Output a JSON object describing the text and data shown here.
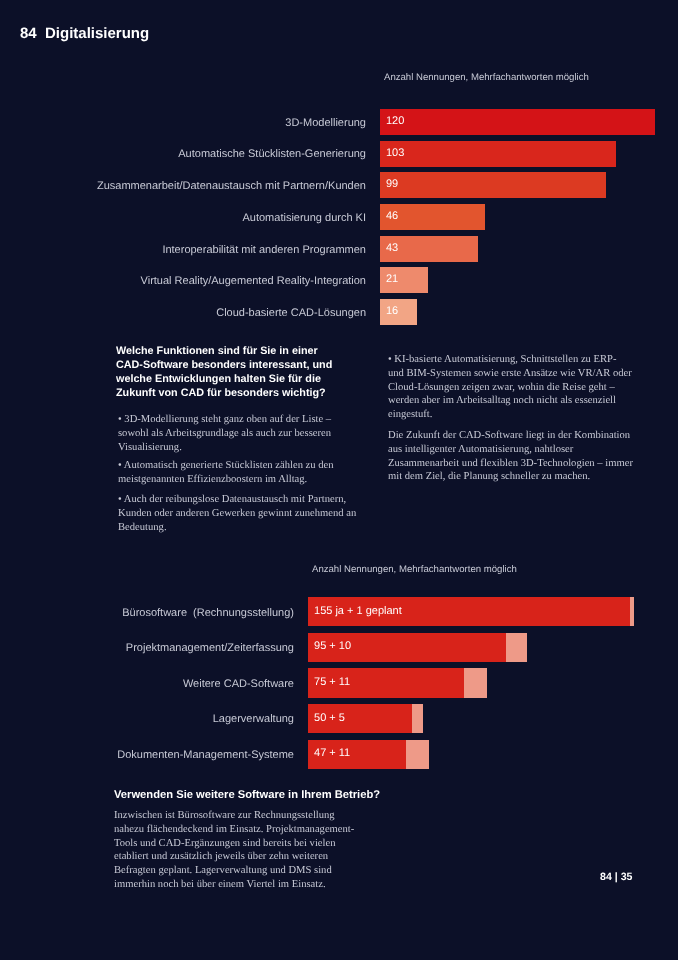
{
  "chart_data": [
    {
      "type": "bar",
      "orientation": "horizontal",
      "subtitle": "Anzahl Nennungen, Mehrfachantworten möglich",
      "categories": [
        "3D-Modellierung",
        "Automatische Stücklisten-Generierung",
        "Zusammenarbeit/Datenaustausch mit Partnern/Kunden",
        "Automatisierung durch KI",
        "Interoperabilität mit anderen Programmen",
        "Virtual Reality/Augemented Reality-Integration",
        "Cloud-basierte CAD-Lösungen"
      ],
      "values": [
        120,
        103,
        99,
        46,
        43,
        21,
        16
      ],
      "colors": [
        "#d41317",
        "#d9261c",
        "#dc3a22",
        "#e2552e",
        "#e8694a",
        "#ee8a6c",
        "#f2a585"
      ],
      "data_labels": true,
      "annotations": [
        "84  Digitalisierung",
        "Welche Funktionen sind für Sie in einer CAD-Software besonders interessant, und welche Entwicklungen halten Sie für die Zukunft von CAD für besonders wichtig?",
        "• 3D-Modellierung steht ganz oben auf der Liste – sowohl als Arbeitsgrundlage als auch zur besseren Visualisierung.",
        "• Automatisch generierte Stücklisten zählen zu den meistgenannten Effizienzboostern im Alltag.",
        "• Auch der reibungslose Datenaustausch mit Partnern, Kunden oder anderen Gewerken gewinnt zunehmend an Bedeutung.",
        "• KI-basierte Automatisierung, Schnittstellen zu ERP- und BIM-Systemen sowie erste Ansätze wie VR/AR oder Cloud-Lösungen zeigen zwar, wohin die Reise geht – werden aber im Arbeitsalltag noch nicht als essenziell eingestuft.",
        "Die Zukunft der CAD-Software liegt in der Kombination aus intelligenter Automatisierung, nahtloser Zusammenarbeit und flexiblen 3D-Technologien – immer mit dem Ziel, die Planung schneller zu machen."
      ]
    },
    {
      "type": "bar",
      "orientation": "horizontal",
      "stacked": true,
      "subtitle": "Anzahl Nennungen, Mehrfachantworten möglich",
      "categories": [
        "Bürosoftware  (Rechnungsstellung)",
        "Projektmanagement/Zeiterfassung",
        "Weitere CAD-Software",
        "Lagerverwaltung",
        "Dokumenten-Management-Systeme"
      ],
      "series": [
        {
          "color": "#d8231a",
          "values": [
            155,
            95,
            75,
            50,
            47
          ],
          "value_labels": [
            "155 ja + 1 geplant",
            "95 + 10",
            "75 + 11",
            "50 + 5",
            "47 + 11"
          ]
        },
        {
          "color": "#ee9a88",
          "values": [
            1,
            10,
            11,
            5,
            11
          ]
        }
      ],
      "annotations": [
        "Verwenden Sie weitere Software in Ihrem Betrieb?",
        "Inzwischen ist Bürosoftware zur Rechnungsstellung nahezu flächendeckend im Einsatz. Projektmanagement- Tools und CAD-Ergänzungen sind bereits bei vielen etabliert und zusätzlich jeweils über zehn weiteren Befragten geplant. Lagerverwaltung und DMS sind immerhin noch bei über einem Viertel im Einsatz.",
        "84 | 35"
      ]
    }
  ]
}
